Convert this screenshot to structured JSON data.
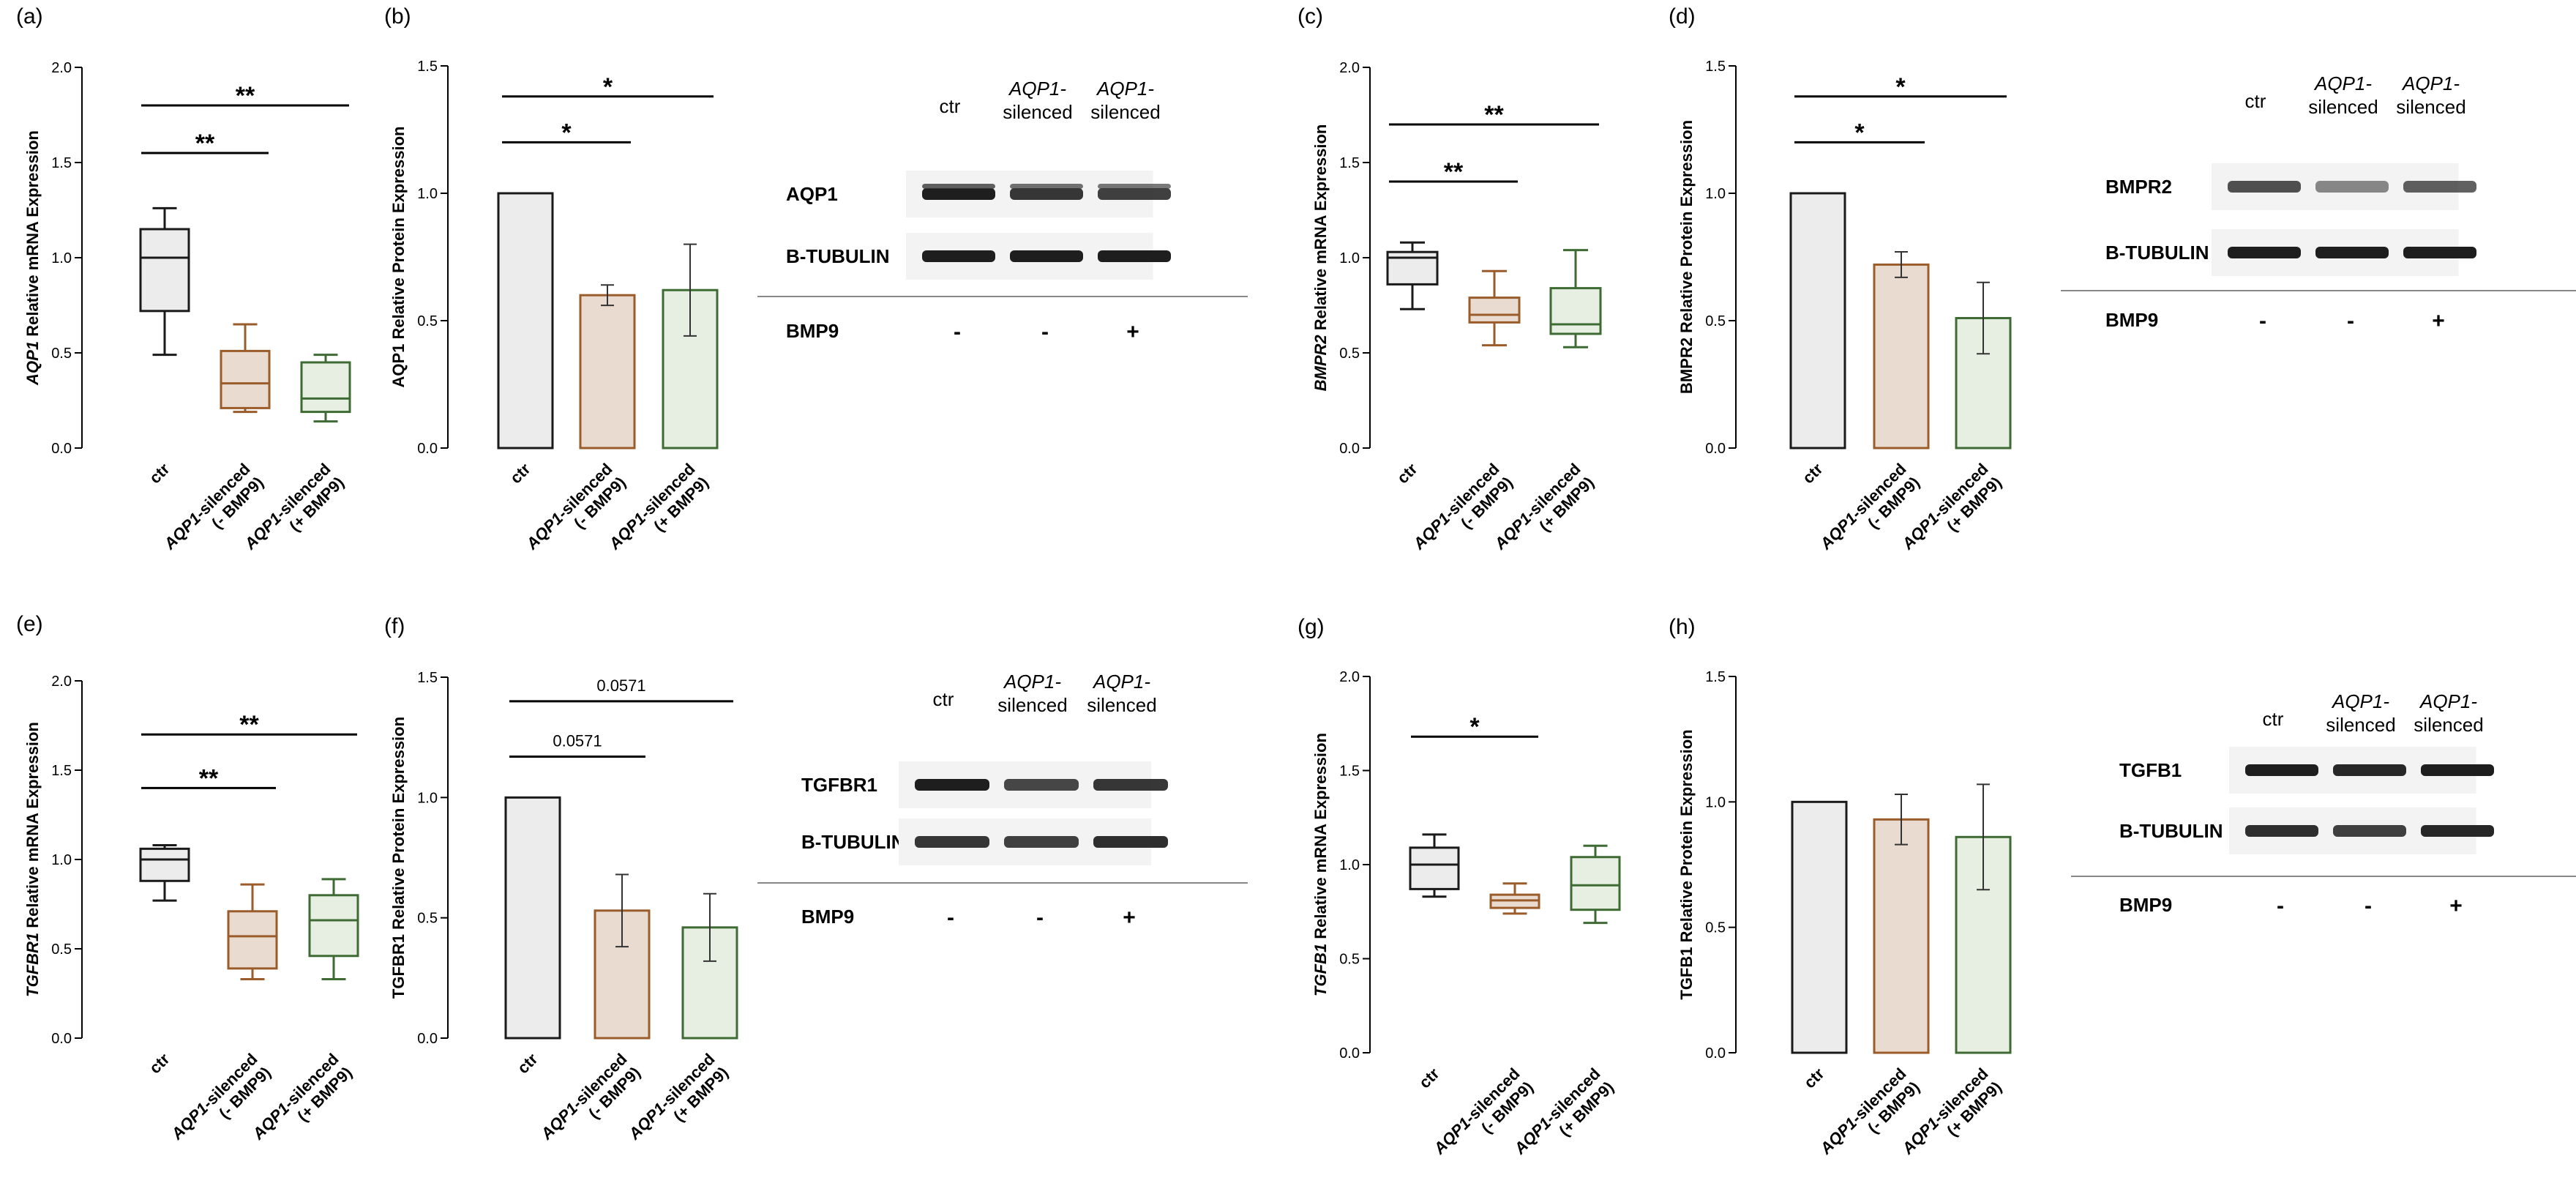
{
  "chart_data": [
    {
      "panel": "(a)",
      "type": "box",
      "ylabel_italic": "AQP1",
      "ylabel": " Relative mRNA Expression",
      "ylim": [
        0,
        2.0
      ],
      "yticks": [
        "0.0",
        "0.5",
        "1.0",
        "1.5",
        "2.0"
      ],
      "categories": [
        {
          "italic": "",
          "line1": "ctr",
          "line2": ""
        },
        {
          "italic": "AQP1",
          "line1": "-silenced",
          "line2": "(- BMP9)"
        },
        {
          "italic": "AQP1",
          "line1": "-silenced",
          "line2": "(+ BMP9)"
        }
      ],
      "boxes": [
        {
          "min": 0.49,
          "q1": 0.72,
          "median": 1.0,
          "q3": 1.15,
          "max": 1.26
        },
        {
          "min": 0.19,
          "q1": 0.21,
          "median": 0.34,
          "q3": 0.51,
          "max": 0.65
        },
        {
          "min": 0.14,
          "q1": 0.19,
          "median": 0.26,
          "q3": 0.45,
          "max": 0.49
        }
      ],
      "significance": [
        {
          "from": 0,
          "to": 1,
          "label": "**",
          "y": 1.55
        },
        {
          "from": 0,
          "to": 2,
          "label": "**",
          "y": 1.8
        }
      ]
    },
    {
      "panel": "(b)",
      "type": "bar",
      "ylabel_italic": "",
      "ylabel": "AQP1 Relative Protein Expression",
      "ylim": [
        0,
        1.5
      ],
      "yticks": [
        "0.0",
        "0.5",
        "1.0",
        "1.5"
      ],
      "categories": [
        {
          "italic": "",
          "line1": "ctr",
          "line2": ""
        },
        {
          "italic": "AQP1",
          "line1": "-silenced",
          "line2": "(- BMP9)"
        },
        {
          "italic": "AQP1",
          "line1": "-silenced",
          "line2": "(+ BMP9)"
        }
      ],
      "values": [
        1.0,
        0.6,
        0.62
      ],
      "errors": [
        0,
        0.04,
        0.18
      ],
      "significance": [
        {
          "from": 0,
          "to": 1,
          "label": "*",
          "y": 1.2
        },
        {
          "from": 0,
          "to": 2,
          "label": "*",
          "y": 1.38
        }
      ],
      "blot": {
        "lanes": [
          {
            "italic": "",
            "line1": "ctr",
            "line2": ""
          },
          {
            "italic": "AQP1-",
            "line1": "silenced",
            "line2": ""
          },
          {
            "italic": "AQP1-",
            "line1": "silenced",
            "line2": ""
          }
        ],
        "rows": [
          "AQP1",
          "B-TUBULIN"
        ],
        "treatment": "BMP9",
        "signs": [
          "-",
          "-",
          "+"
        ],
        "intensity": [
          [
            1.0,
            0.85,
            0.8
          ],
          [
            1.0,
            1.0,
            1.0
          ]
        ]
      }
    },
    {
      "panel": "(c)",
      "type": "box",
      "ylabel_italic": "BMPR2",
      "ylabel": " Relative mRNA Expression",
      "ylim": [
        0,
        2.0
      ],
      "yticks": [
        "0.0",
        "0.5",
        "1.0",
        "1.5",
        "2.0"
      ],
      "categories": [
        {
          "italic": "",
          "line1": "ctr",
          "line2": ""
        },
        {
          "italic": "AQP1",
          "line1": "-silenced",
          "line2": "(- BMP9)"
        },
        {
          "italic": "AQP1",
          "line1": "-silenced",
          "line2": "(+ BMP9)"
        }
      ],
      "boxes": [
        {
          "min": 0.73,
          "q1": 0.86,
          "median": 1.0,
          "q3": 1.03,
          "max": 1.08
        },
        {
          "min": 0.54,
          "q1": 0.66,
          "median": 0.7,
          "q3": 0.79,
          "max": 0.93
        },
        {
          "min": 0.53,
          "q1": 0.6,
          "median": 0.65,
          "q3": 0.84,
          "max": 1.04
        }
      ],
      "significance": [
        {
          "from": 0,
          "to": 1,
          "label": "**",
          "y": 1.4
        },
        {
          "from": 0,
          "to": 2,
          "label": "**",
          "y": 1.7
        }
      ]
    },
    {
      "panel": "(d)",
      "type": "bar",
      "ylabel_italic": "",
      "ylabel": "BMPR2 Relative Protein Expression",
      "ylim": [
        0,
        1.5
      ],
      "yticks": [
        "0.0",
        "0.5",
        "1.0",
        "1.5"
      ],
      "categories": [
        {
          "italic": "",
          "line1": "ctr",
          "line2": ""
        },
        {
          "italic": "AQP1",
          "line1": "-silenced",
          "line2": "(- BMP9)"
        },
        {
          "italic": "AQP1",
          "line1": "-silenced",
          "line2": "(+ BMP9)"
        }
      ],
      "values": [
        1.0,
        0.72,
        0.51
      ],
      "errors": [
        0,
        0.05,
        0.14
      ],
      "significance": [
        {
          "from": 0,
          "to": 1,
          "label": "*",
          "y": 1.2
        },
        {
          "from": 0,
          "to": 2,
          "label": "*",
          "y": 1.38
        }
      ],
      "blot": {
        "lanes": [
          {
            "italic": "",
            "line1": "ctr",
            "line2": ""
          },
          {
            "italic": "AQP1-",
            "line1": "silenced",
            "line2": ""
          },
          {
            "italic": "AQP1-",
            "line1": "silenced",
            "line2": ""
          }
        ],
        "rows": [
          "BMPR2",
          "B-TUBULIN"
        ],
        "treatment": "BMP9",
        "signs": [
          "-",
          "-",
          "+"
        ],
        "intensity": [
          [
            0.7,
            0.35,
            0.6
          ],
          [
            1.0,
            1.0,
            1.0
          ]
        ]
      }
    },
    {
      "panel": "(e)",
      "type": "box",
      "ylabel_italic": "TGFBR1",
      "ylabel": " Relative mRNA Expression",
      "ylim": [
        0,
        2.0
      ],
      "yticks": [
        "0.0",
        "0.5",
        "1.0",
        "1.5",
        "2.0"
      ],
      "categories": [
        {
          "italic": "",
          "line1": "ctr",
          "line2": ""
        },
        {
          "italic": "AQP1",
          "line1": "-silenced",
          "line2": "(- BMP9)"
        },
        {
          "italic": "AQP1",
          "line1": "-silenced",
          "line2": "(+ BMP9)"
        }
      ],
      "boxes": [
        {
          "min": 0.77,
          "q1": 0.88,
          "median": 1.0,
          "q3": 1.06,
          "max": 1.08
        },
        {
          "min": 0.33,
          "q1": 0.39,
          "median": 0.57,
          "q3": 0.71,
          "max": 0.86
        },
        {
          "min": 0.33,
          "q1": 0.46,
          "median": 0.66,
          "q3": 0.8,
          "max": 0.89
        }
      ],
      "significance": [
        {
          "from": 0,
          "to": 1,
          "label": "**",
          "y": 1.4
        },
        {
          "from": 0,
          "to": 2,
          "label": "**",
          "y": 1.7
        }
      ]
    },
    {
      "panel": "(f)",
      "type": "bar",
      "ylabel_italic": "",
      "ylabel": "TGFBR1 Relative Protein Expression",
      "ylim": [
        0,
        1.5
      ],
      "yticks": [
        "0.0",
        "0.5",
        "1.0",
        "1.5"
      ],
      "categories": [
        {
          "italic": "",
          "line1": "ctr",
          "line2": ""
        },
        {
          "italic": "AQP1",
          "line1": "-silenced",
          "line2": "(- BMP9)"
        },
        {
          "italic": "AQP1",
          "line1": "-silenced",
          "line2": "(+ BMP9)"
        }
      ],
      "values": [
        1.0,
        0.53,
        0.46
      ],
      "errors": [
        0,
        0.15,
        0.14
      ],
      "significance": [
        {
          "from": 0,
          "to": 1,
          "label": "0.0571",
          "y": 1.17
        },
        {
          "from": 0,
          "to": 2,
          "label": "0.0571",
          "y": 1.4
        }
      ],
      "blot": {
        "lanes": [
          {
            "italic": "",
            "line1": "ctr",
            "line2": ""
          },
          {
            "italic": "AQP1-",
            "line1": "silenced",
            "line2": ""
          },
          {
            "italic": "AQP1-",
            "line1": "silenced",
            "line2": ""
          }
        ],
        "rows": [
          "TGFBR1",
          "B-TUBULIN"
        ],
        "treatment": "BMP9",
        "signs": [
          "-",
          "-",
          "+"
        ],
        "intensity": [
          [
            1.0,
            0.75,
            0.85
          ],
          [
            0.85,
            0.8,
            0.9
          ]
        ]
      }
    },
    {
      "panel": "(g)",
      "type": "box",
      "ylabel_italic": "TGFB1",
      "ylabel": " Relative mRNA Expression",
      "ylim": [
        0,
        2.0
      ],
      "yticks": [
        "0.0",
        "0.5",
        "1.0",
        "1.5",
        "2.0"
      ],
      "categories": [
        {
          "italic": "",
          "line1": "ctr",
          "line2": ""
        },
        {
          "italic": "AQP1",
          "line1": "-silenced",
          "line2": "(- BMP9)"
        },
        {
          "italic": "AQP1",
          "line1": "-silenced",
          "line2": "(+ BMP9)"
        }
      ],
      "boxes": [
        {
          "min": 0.83,
          "q1": 0.87,
          "median": 1.0,
          "q3": 1.09,
          "max": 1.16
        },
        {
          "min": 0.74,
          "q1": 0.77,
          "median": 0.81,
          "q3": 0.84,
          "max": 0.9
        },
        {
          "min": 0.69,
          "q1": 0.76,
          "median": 0.89,
          "q3": 1.04,
          "max": 1.1
        }
      ],
      "significance": [
        {
          "from": 0,
          "to": 1,
          "label": "*",
          "y": 1.68
        }
      ]
    },
    {
      "panel": "(h)",
      "type": "bar",
      "ylabel_italic": "",
      "ylabel": "TGFB1 Relative Protein Expression",
      "ylim": [
        0,
        1.5
      ],
      "yticks": [
        "0.0",
        "0.5",
        "1.0",
        "1.5"
      ],
      "categories": [
        {
          "italic": "",
          "line1": "ctr",
          "line2": ""
        },
        {
          "italic": "AQP1",
          "line1": "-silenced",
          "line2": "(- BMP9)"
        },
        {
          "italic": "AQP1",
          "line1": "-silenced",
          "line2": "(+ BMP9)"
        }
      ],
      "values": [
        1.0,
        0.93,
        0.86
      ],
      "errors": [
        0,
        0.1,
        0.21
      ],
      "significance": [],
      "blot": {
        "lanes": [
          {
            "italic": "",
            "line1": "ctr",
            "line2": ""
          },
          {
            "italic": "AQP1-",
            "line1": "silenced",
            "line2": ""
          },
          {
            "italic": "AQP1-",
            "line1": "silenced",
            "line2": ""
          }
        ],
        "rows": [
          "TGFB1",
          "B-TUBULIN"
        ],
        "treatment": "BMP9",
        "signs": [
          "-",
          "-",
          "+"
        ],
        "intensity": [
          [
            1.0,
            0.95,
            1.0
          ],
          [
            0.9,
            0.8,
            0.95
          ]
        ]
      }
    }
  ],
  "colors": {
    "ctr_fill": "#ececec",
    "ctr_stroke": "#1a1a1a",
    "minus_fill": "#e9dbcf",
    "minus_stroke": "#9a5c2a",
    "plus_fill": "#e6efe2",
    "plus_stroke": "#3d6b33"
  }
}
